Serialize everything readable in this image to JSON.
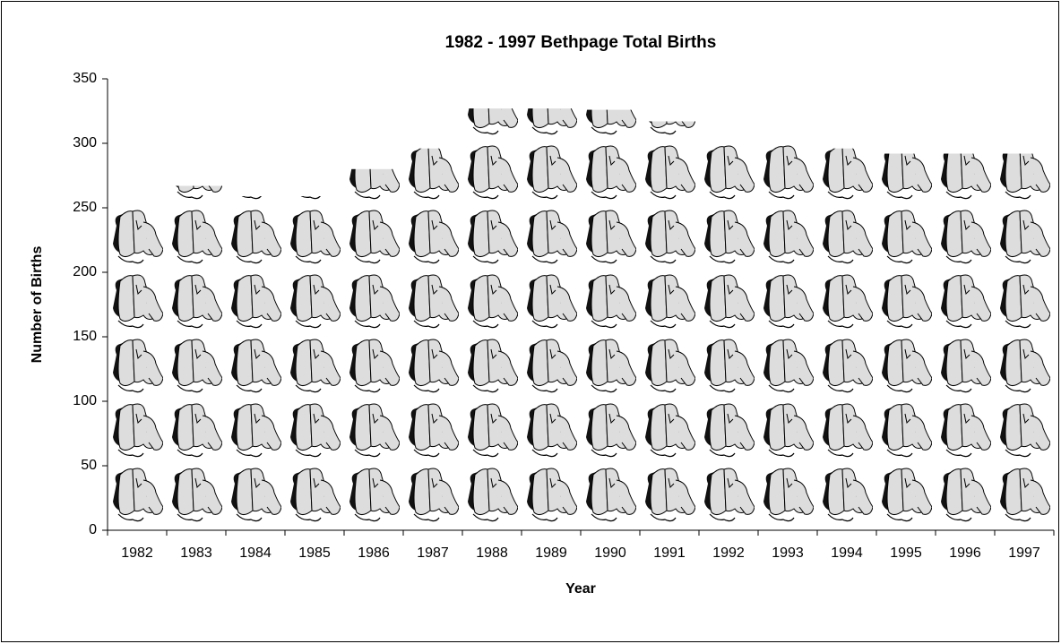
{
  "chart_data": {
    "type": "bar",
    "title": "1982 - 1997 Bethpage Total Births",
    "x_label": "Year",
    "y_label": "Number of Births",
    "categories": [
      "1982",
      "1983",
      "1984",
      "1985",
      "1986",
      "1987",
      "1988",
      "1989",
      "1990",
      "1991",
      "1992",
      "1993",
      "1994",
      "1995",
      "1996",
      "1997"
    ],
    "values": [
      253,
      267,
      259,
      259,
      280,
      296,
      327,
      327,
      326,
      317,
      302,
      300,
      296,
      292,
      292,
      292
    ],
    "ylim": [
      0,
      350
    ],
    "yticks": [
      0,
      50,
      100,
      150,
      200,
      250,
      300,
      350
    ],
    "grid": false
  }
}
